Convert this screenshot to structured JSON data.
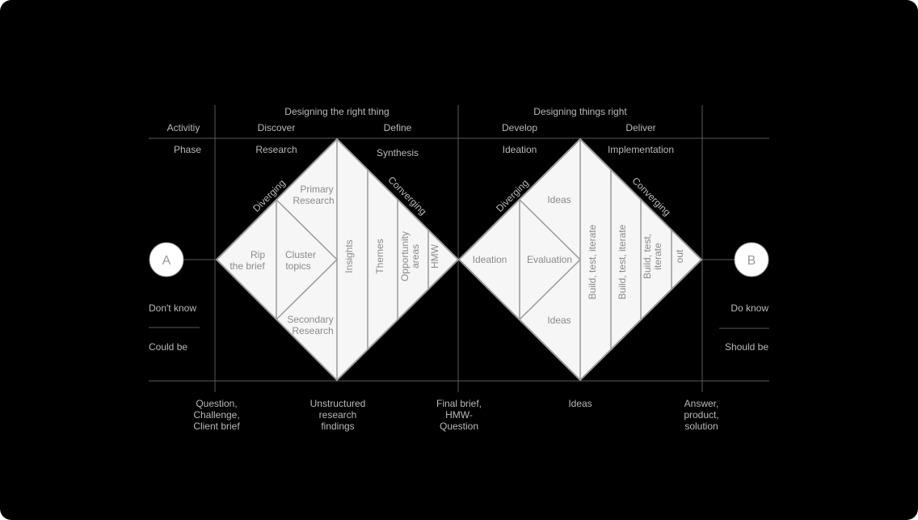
{
  "header": {
    "left_group": "Designing the right thing",
    "right_group": "Designing things right"
  },
  "rows": {
    "activity_label": "Activitiy",
    "phase_label": "Phase"
  },
  "activities": {
    "discover": "Discover",
    "define": "Define",
    "develop": "Develop",
    "deliver": "Deliver"
  },
  "phases": {
    "research": "Research",
    "synthesis": "Synthesis",
    "ideation": "Ideation",
    "implementation": "Implementation"
  },
  "diamond1": {
    "diverging": "Diverging",
    "converging": "Converging",
    "rip_line1": "Rip",
    "rip_line2": "the brief",
    "cluster_line1": "Cluster",
    "cluster_line2": "topics",
    "primary_line1": "Primary",
    "primary_line2": "Research",
    "secondary_line1": "Secondary",
    "secondary_line2": "Research",
    "insights": "Insights",
    "themes": "Themes",
    "opportunity_line1": "Opportunity",
    "opportunity_line2": "areas",
    "hmw": "HMW"
  },
  "diamond2": {
    "diverging": "Diverging",
    "converging": "Converging",
    "ideation": "Ideation",
    "evaluation": "Evaluation",
    "ideas_top": "Ideas",
    "ideas_bottom": "Ideas",
    "build1": "Build, test, iterate",
    "build2": "Build, test, iterate",
    "build3_line1": "Build, test,",
    "build3_line2": "iterate",
    "out": "out"
  },
  "nodes": {
    "start": "A",
    "end": "B"
  },
  "side": {
    "dont_know": "Don't know",
    "could_be": "Could be",
    "do_know": "Do know",
    "should_be": "Should be"
  },
  "bottom": {
    "q1": "Question,",
    "q2": "Challenge,",
    "q3": "Client brief",
    "u1": "Unstructured",
    "u2": "research",
    "u3": "findings",
    "f1": "Final brief,",
    "f2": "HMW-",
    "f3": "Question",
    "ideas": "Ideas",
    "a1": "Answer,",
    "a2": "product,",
    "a3": "solution"
  },
  "colors": {
    "background": "#000000",
    "diamond_fill": "#f6f6f6",
    "stroke": "#9a9a9a",
    "grid": "#5a5a5a",
    "text": "#b9b9b9"
  }
}
